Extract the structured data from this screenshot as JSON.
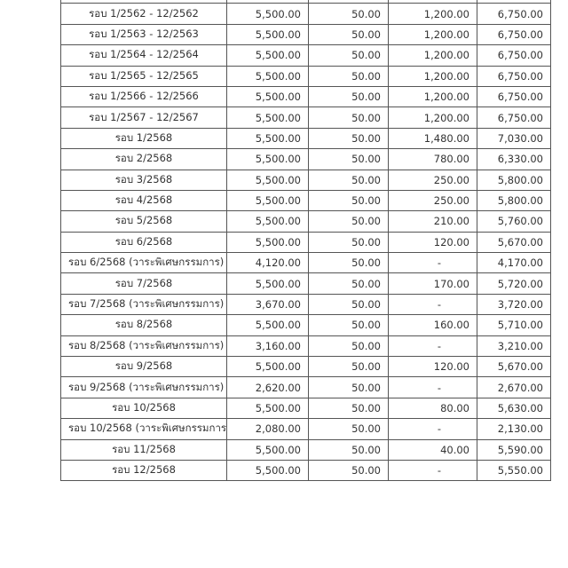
{
  "rows": [
    [
      "",
      "",
      "",
      "",
      ""
    ],
    [
      "รอบ 1/2562 - 12/2562",
      "5,500.00",
      "50.00",
      "1,200.00",
      "6,750.00"
    ],
    [
      "รอบ 1/2563 - 12/2563",
      "5,500.00",
      "50.00",
      "1,200.00",
      "6,750.00"
    ],
    [
      "รอบ 1/2564 - 12/2564",
      "5,500.00",
      "50.00",
      "1,200.00",
      "6,750.00"
    ],
    [
      "รอบ 1/2565 - 12/2565",
      "5,500.00",
      "50.00",
      "1,200.00",
      "6,750.00"
    ],
    [
      "รอบ 1/2566 - 12/2566",
      "5,500.00",
      "50.00",
      "1,200.00",
      "6,750.00"
    ],
    [
      "รอบ 1/2567 - 12/2567",
      "5,500.00",
      "50.00",
      "1,200.00",
      "6,750.00"
    ],
    [
      "รอบ 1/2568",
      "5,500.00",
      "50.00",
      "1,480.00",
      "7,030.00"
    ],
    [
      "รอบ 2/2568",
      "5,500.00",
      "50.00",
      "780.00",
      "6,330.00"
    ],
    [
      "รอบ 3/2568",
      "5,500.00",
      "50.00",
      "250.00",
      "5,800.00"
    ],
    [
      "รอบ 4/2568",
      "5,500.00",
      "50.00",
      "250.00",
      "5,800.00"
    ],
    [
      "รอบ 5/2568",
      "5,500.00",
      "50.00",
      "210.00",
      "5,760.00"
    ],
    [
      "รอบ 6/2568",
      "5,500.00",
      "50.00",
      "120.00",
      "5,670.00"
    ],
    [
      "รอบ 6/2568 (วาระพิเศษกรรมการ)",
      "4,120.00",
      "50.00",
      "-",
      "4,170.00"
    ],
    [
      "รอบ 7/2568",
      "5,500.00",
      "50.00",
      "170.00",
      "5,720.00"
    ],
    [
      "รอบ 7/2568 (วาระพิเศษกรรมการ)",
      "3,670.00",
      "50.00",
      "-",
      "3,720.00"
    ],
    [
      "รอบ 8/2568",
      "5,500.00",
      "50.00",
      "160.00",
      "5,710.00"
    ],
    [
      "รอบ 8/2568 (วาระพิเศษกรรมการ)",
      "3,160.00",
      "50.00",
      "-",
      "3,210.00"
    ],
    [
      "รอบ 9/2568",
      "5,500.00",
      "50.00",
      "120.00",
      "5,670.00"
    ],
    [
      "รอบ 9/2568 (วาระพิเศษกรรมการ)",
      "2,620.00",
      "50.00",
      "-",
      "2,670.00"
    ],
    [
      "รอบ 10/2568",
      "5,500.00",
      "50.00",
      "80.00",
      "5,630.00"
    ],
    [
      "รอบ 10/2568 (วาระพิเศษกรรมการ)",
      "2,080.00",
      "50.00",
      "-",
      "2,130.00"
    ],
    [
      "รอบ 11/2568",
      "5,500.00",
      "50.00",
      "40.00",
      "5,590.00"
    ],
    [
      "รอบ 12/2568",
      "5,500.00",
      "50.00",
      "-",
      "5,550.00"
    ]
  ]
}
